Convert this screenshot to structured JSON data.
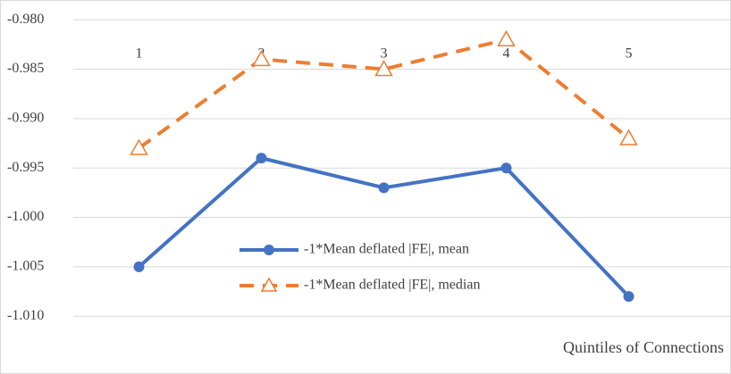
{
  "chart_data": {
    "type": "line",
    "x_label": "Quintiles of Connections",
    "categories": [
      "1",
      "2",
      "3",
      "4",
      "5"
    ],
    "series": [
      {
        "name": "-1*Mean deflated |FE|, mean",
        "color": "#4472c4",
        "marker": "circle",
        "dashed": false,
        "values": [
          -1.005,
          -0.994,
          -0.997,
          -0.995,
          -1.008
        ]
      },
      {
        "name": "-1*Mean deflated |FE|, median",
        "color": "#ed7d31",
        "marker": "triangle",
        "dashed": true,
        "values": [
          -0.993,
          -0.984,
          -0.985,
          -0.982,
          -0.992
        ]
      }
    ],
    "ylim": [
      -1.0135,
      -0.978
    ],
    "yticks": [
      {
        "value": -0.98,
        "label": "-0.980"
      },
      {
        "value": -0.985,
        "label": "-0.985"
      },
      {
        "value": -0.99,
        "label": "-0.990"
      },
      {
        "value": -0.995,
        "label": "-0.995"
      },
      {
        "value": -1.0,
        "label": "-1.000"
      },
      {
        "value": -1.005,
        "label": "-1.005"
      },
      {
        "value": -1.01,
        "label": "-1.010"
      }
    ],
    "grid": true
  }
}
